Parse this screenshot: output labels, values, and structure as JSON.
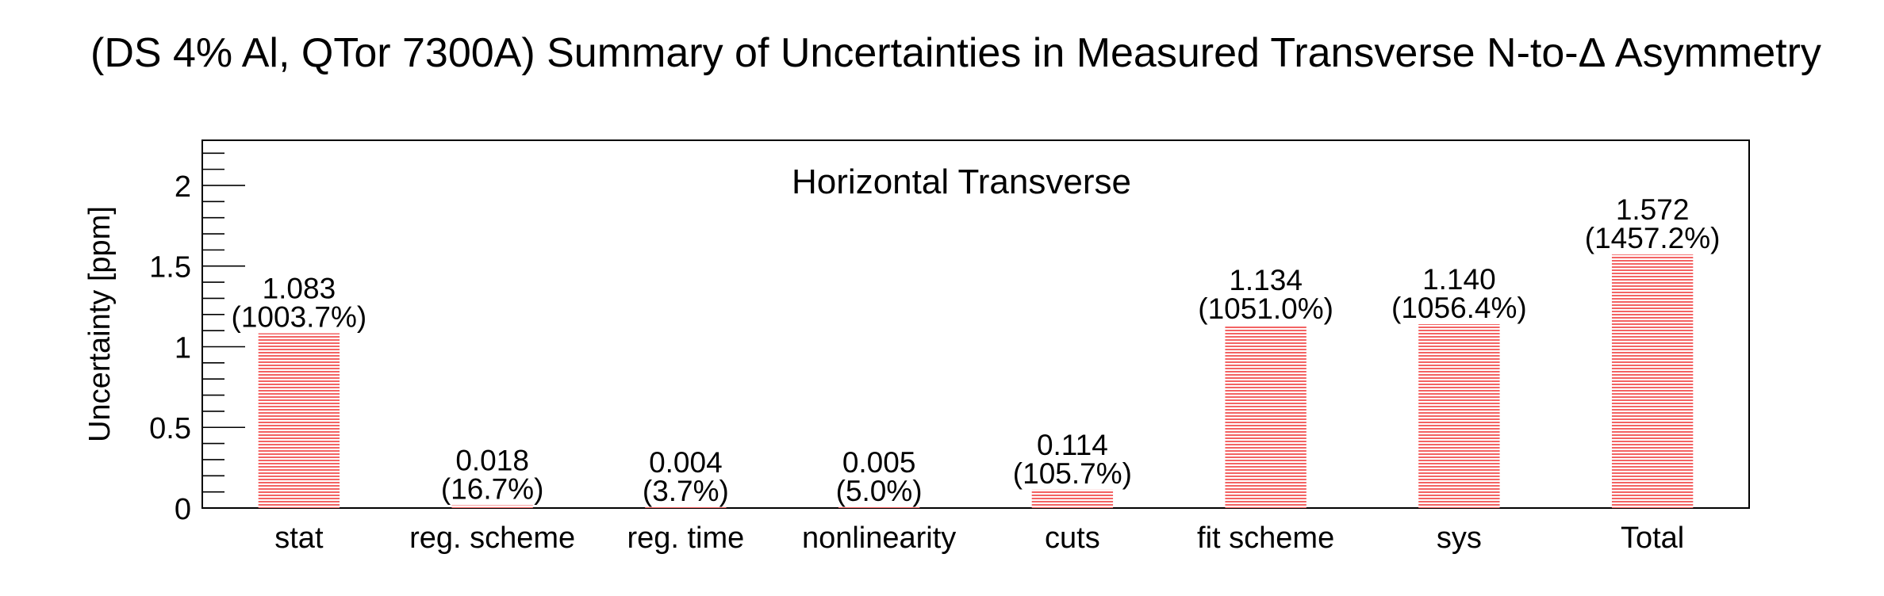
{
  "chart_data": {
    "type": "bar",
    "title": "(DS 4% Al, QTor 7300A) Summary of Uncertainties in Measured Transverse N-to-Δ Asymmetry",
    "annotation": "Horizontal Transverse",
    "ylabel": "Uncertainty [ppm]",
    "xlabel": "",
    "ylim": [
      0,
      2.28
    ],
    "yticks": [
      "0",
      "0.5",
      "1",
      "1.5",
      "2"
    ],
    "categories": [
      "stat",
      "reg. scheme",
      "reg. time",
      "nonlinearity",
      "cuts",
      "fit scheme",
      "sys",
      "Total"
    ],
    "values": [
      1.083,
      0.018,
      0.004,
      0.005,
      0.114,
      1.134,
      1.14,
      1.572
    ],
    "value_labels": [
      "1.083",
      "0.018",
      "0.004",
      "0.005",
      "0.114",
      "1.134",
      "1.140",
      "1.572"
    ],
    "percent_labels": [
      "(1003.7%)",
      "(16.7%)",
      "(3.7%)",
      "(5.0%)",
      "(105.7%)",
      "(1051.0%)",
      "(1056.4%)",
      "(1457.2%)"
    ],
    "grid": false,
    "legend": "none",
    "bar_color": "#f03c3c",
    "annotation_color": "#ee3333"
  }
}
